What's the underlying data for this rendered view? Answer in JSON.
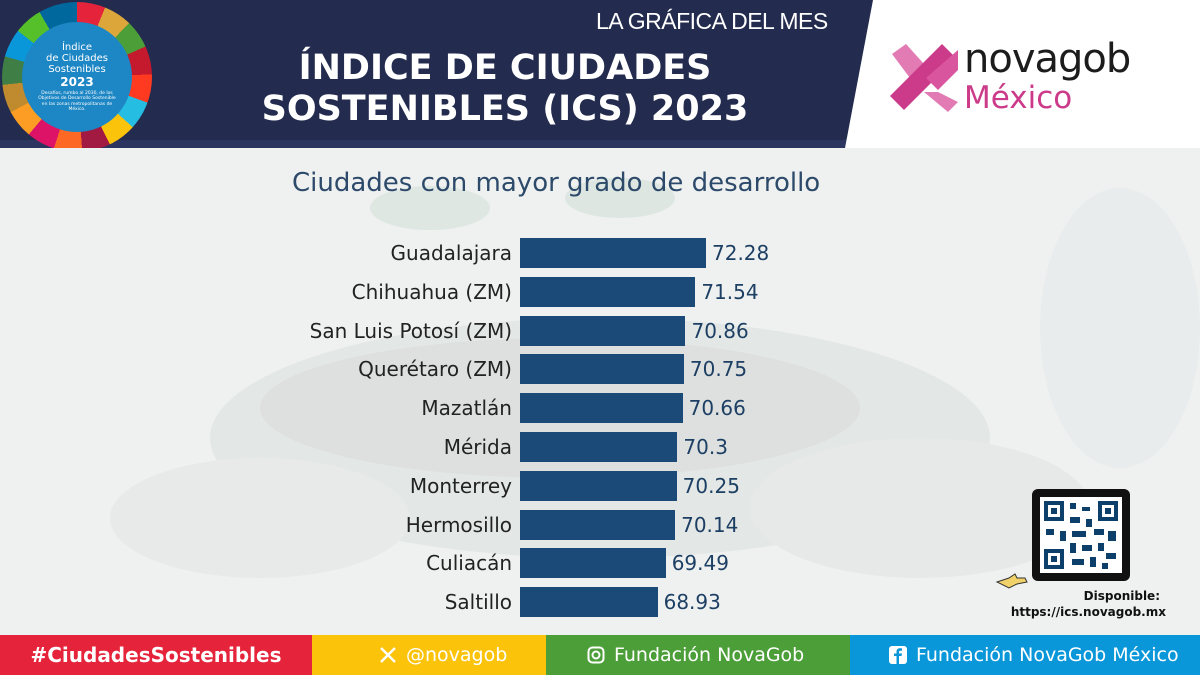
{
  "header": {
    "badge": {
      "title_line1": "Índice",
      "title_line2": "de Ciudades",
      "title_line3": "Sostenibles",
      "year": "2023",
      "description": "Desafíos, rumbo al 2030, de los Objetivos de Desarrollo Sostenible en las zonas metropolitanas de México."
    },
    "kicker": "LA GRÁFICA DEL MES",
    "title_line1": "ÍNDICE DE CIUDADES",
    "title_line2": "SOSTENIBLES (ICS) 2023",
    "logo_word": "novagob",
    "logo_sub": "México",
    "colors": {
      "navy": "#232b4e",
      "logo_pink": "#cc3a8a",
      "logo_pink_light": "#e27ab4"
    }
  },
  "chart_data": {
    "type": "bar",
    "orientation": "horizontal",
    "title": "Ciudades con mayor grado de desarrollo",
    "categories": [
      "Guadalajara",
      "Chihuahua (ZM)",
      "San Luis Potosí (ZM)",
      "Querétaro (ZM)",
      "Mazatlán",
      "Mérida",
      "Monterrey",
      "Hermosillo",
      "Culiacán",
      "Saltillo"
    ],
    "values": [
      72.28,
      71.54,
      70.86,
      70.75,
      70.66,
      70.3,
      70.25,
      70.14,
      69.49,
      68.93
    ],
    "value_labels": [
      "72.28",
      "71.54",
      "70.86",
      "70.75",
      "70.66",
      "70.3",
      "70.25",
      "70.14",
      "69.49",
      "68.93"
    ],
    "xlabel": "",
    "ylabel": "",
    "grid": false,
    "bar_color": "#1b4a78"
  },
  "qr": {
    "icon": "qr-code-icon",
    "available_label": "Disponible:",
    "url": "https://ics.novagob.mx"
  },
  "footer": {
    "hashtag": "#CiudadesSostenibles",
    "twitter": "@novagob",
    "instagram": "Fundación NovaGob",
    "facebook": "Fundación NovaGob México",
    "colors": [
      "#e5243b",
      "#fcc30b",
      "#4c9f38",
      "#0a97d9"
    ]
  }
}
